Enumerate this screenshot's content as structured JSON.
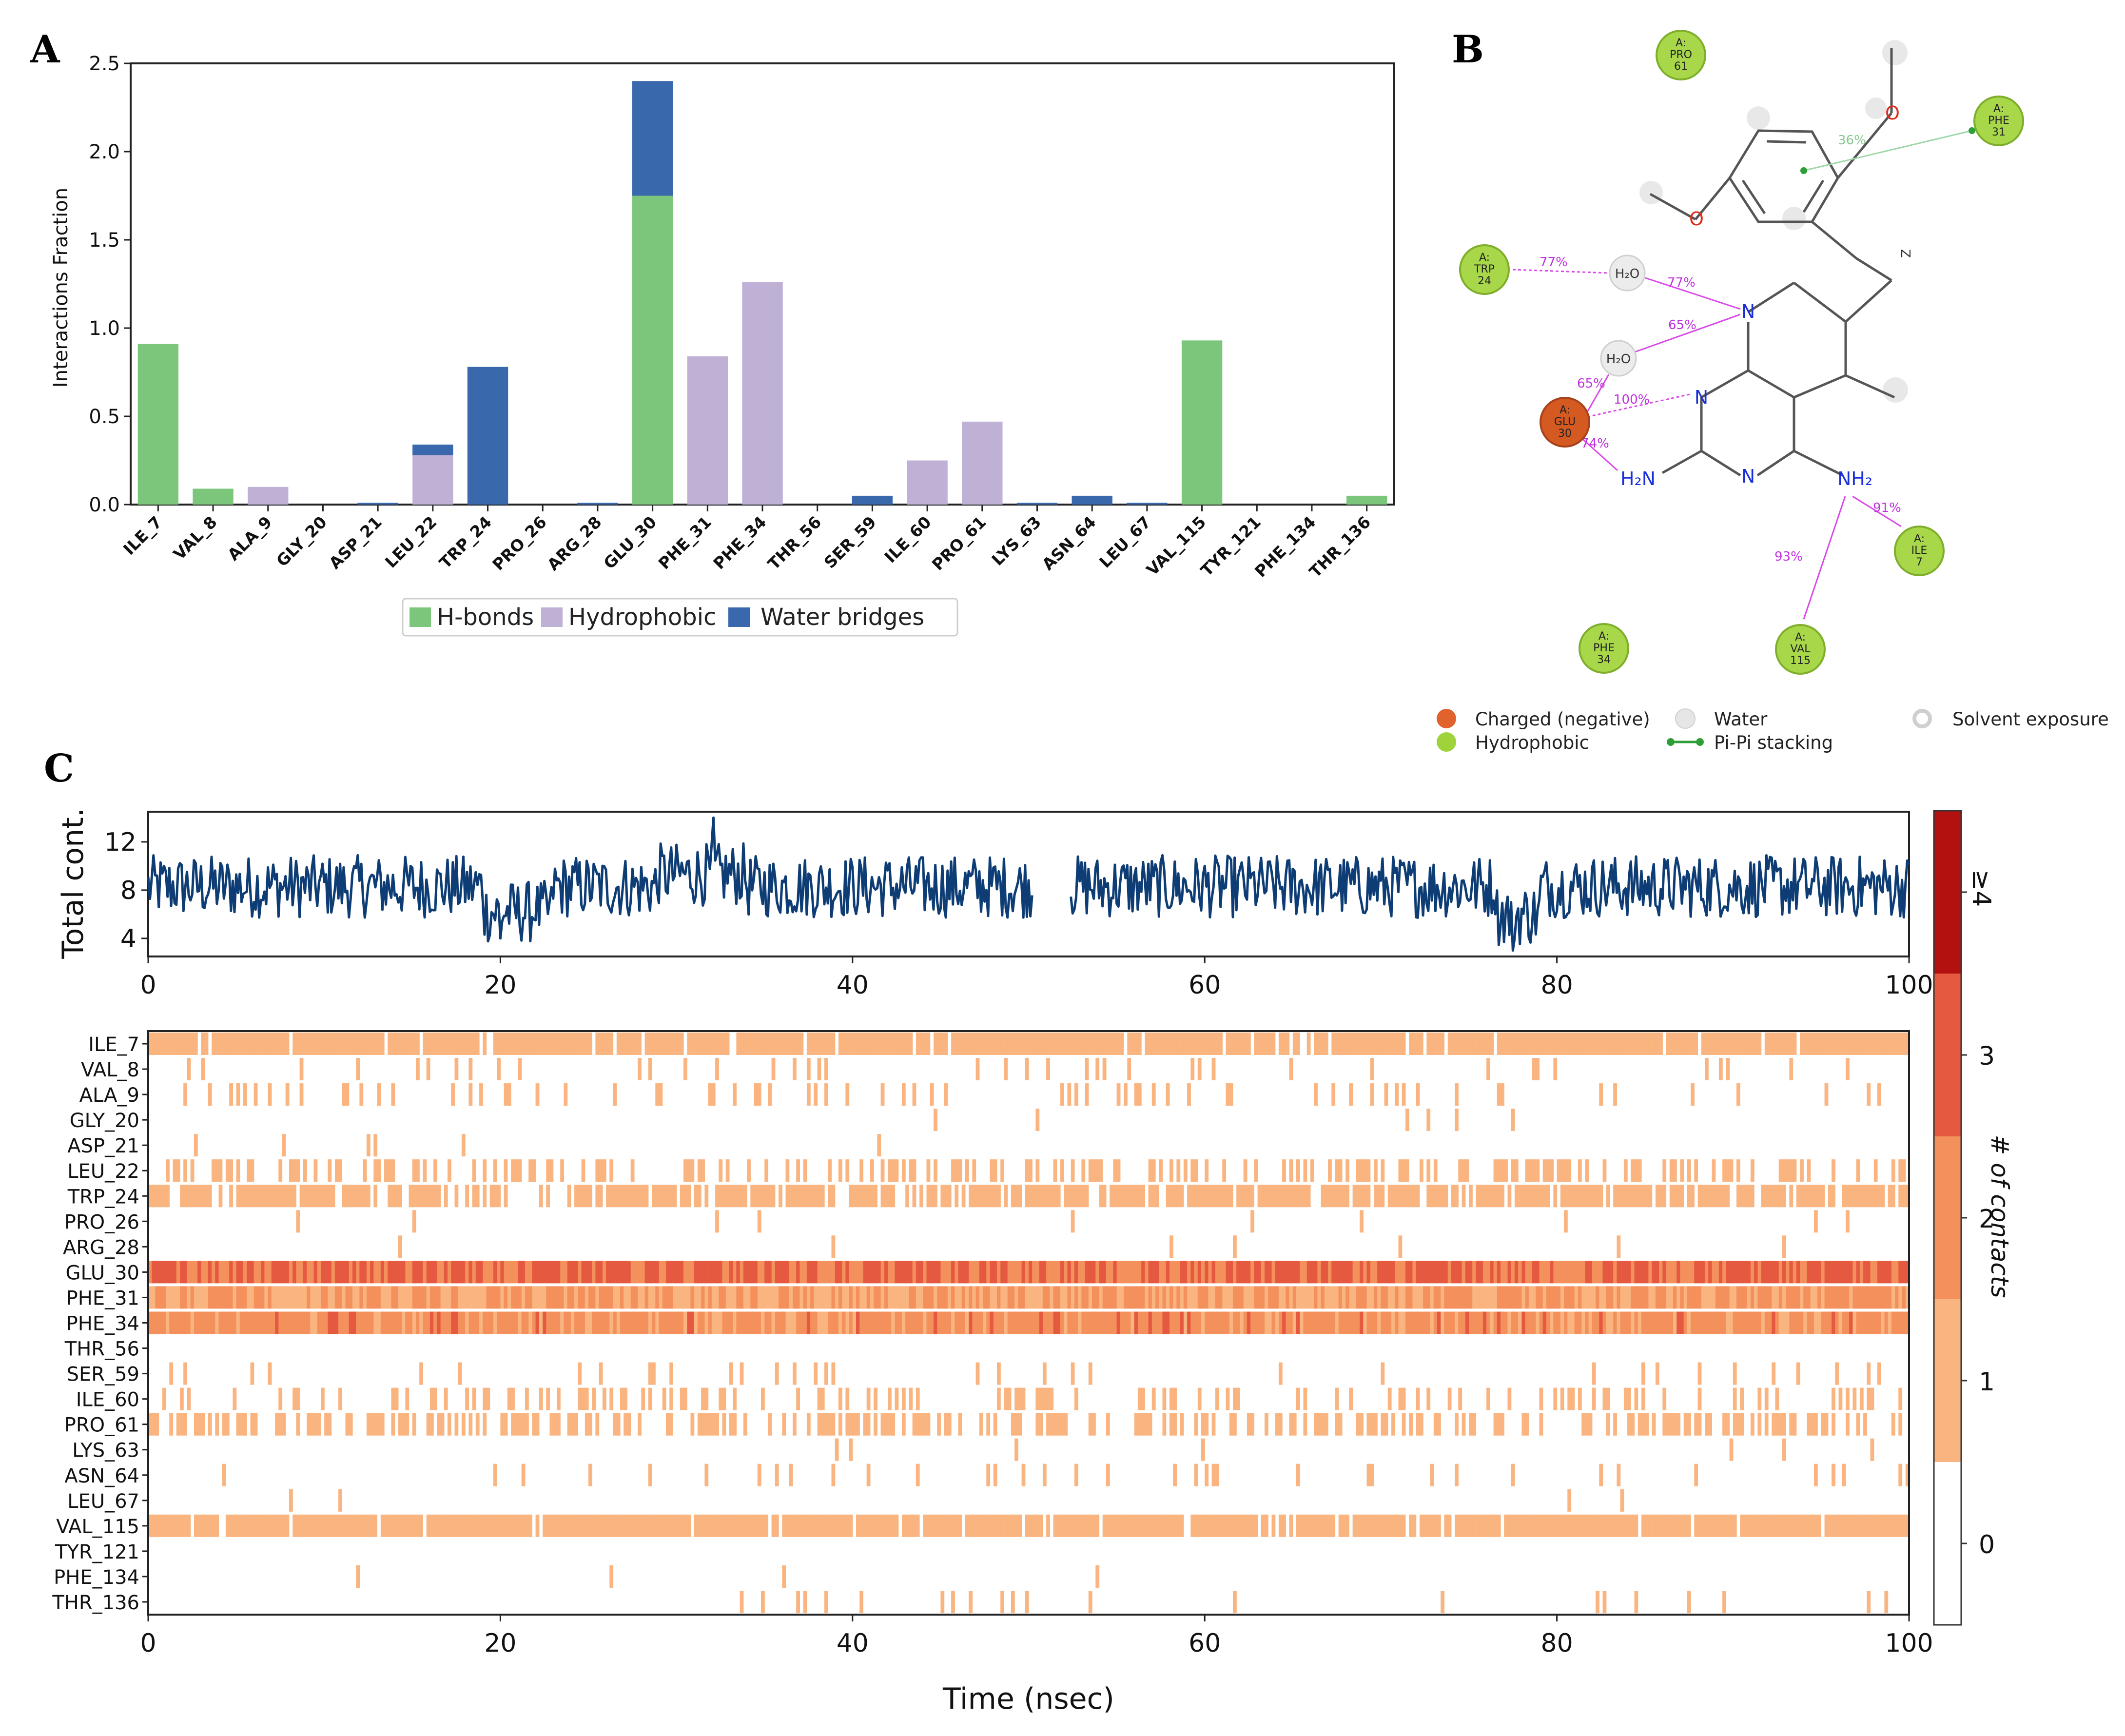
{
  "panels": {
    "a": "A",
    "b": "B",
    "c": "C"
  },
  "chart_data": [
    {
      "type": "bar",
      "stacked": true,
      "title": "",
      "xlabel": "",
      "ylabel": "Interactions Fraction",
      "ylim": [
        0,
        2.5
      ],
      "yticks": [
        "0.0",
        "0.5",
        "1.0",
        "1.5",
        "2.0",
        "2.5"
      ],
      "categories": [
        "ILE_7",
        "VAL_8",
        "ALA_9",
        "GLY_20",
        "ASP_21",
        "LEU_22",
        "TRP_24",
        "PRO_26",
        "ARG_28",
        "GLU_30",
        "PHE_31",
        "PHE_34",
        "THR_56",
        "SER_59",
        "ILE_60",
        "PRO_61",
        "LYS_63",
        "ASN_64",
        "LEU_67",
        "VAL_115",
        "TYR_121",
        "PHE_134",
        "THR_136"
      ],
      "series": [
        {
          "name": "H-bonds",
          "color": "#7cc67c",
          "values": [
            0.91,
            0.09,
            0,
            0,
            0,
            0,
            0,
            0,
            0,
            1.75,
            0,
            0,
            0,
            0,
            0,
            0,
            0,
            0,
            0,
            0.93,
            0,
            0,
            0.05
          ]
        },
        {
          "name": "Hydrophobic",
          "color": "#bfb0d6",
          "values": [
            0,
            0,
            0.1,
            0,
            0,
            0.28,
            0,
            0,
            0,
            0,
            0.84,
            1.26,
            0,
            0,
            0.25,
            0.47,
            0,
            0,
            0,
            0,
            0,
            0,
            0
          ]
        },
        {
          "name": "Water bridges",
          "color": "#3a68ad",
          "values": [
            0,
            0,
            0,
            0,
            0.01,
            0.06,
            0.78,
            0,
            0.01,
            0.65,
            0,
            0,
            0,
            0.05,
            0,
            0,
            0.01,
            0.05,
            0.01,
            0,
            0,
            0,
            0
          ]
        }
      ],
      "legend": [
        "H-bonds",
        "Hydrophobic",
        "Water bridges"
      ],
      "legend_position": "bottom-center"
    },
    {
      "type": "line",
      "ylabel": "Total cont.",
      "yticks": [
        "4",
        "8",
        "12"
      ],
      "ylim": [
        2.5,
        14.5
      ],
      "xlim": [
        0,
        100
      ],
      "xticks": [
        "0",
        "20",
        "40",
        "60",
        "80",
        "100"
      ],
      "color": "#0d3d74",
      "x_start": 0,
      "x_step": 0.1,
      "gap": [
        50.3,
        52.4
      ],
      "y_mean": 8.3,
      "events": [
        {
          "x": 20,
          "y": 4
        },
        {
          "x": 22,
          "y": 5.5
        },
        {
          "x": 32.1,
          "y": 14
        },
        {
          "x": 77.5,
          "y": 3
        }
      ]
    },
    {
      "type": "heatmap",
      "xlabel": "Time (nsec)",
      "xlim": [
        0,
        100
      ],
      "xticks": [
        "0",
        "20",
        "40",
        "60",
        "80",
        "100"
      ],
      "rows": [
        "ILE_7",
        "VAL_8",
        "ALA_9",
        "GLY_20",
        "ASP_21",
        "LEU_22",
        "TRP_24",
        "PRO_26",
        "ARG_28",
        "GLU_30",
        "PHE_31",
        "PHE_34",
        "THR_56",
        "SER_59",
        "ILE_60",
        "PRO_61",
        "LYS_63",
        "ASN_64",
        "LEU_67",
        "VAL_115",
        "TYR_121",
        "PHE_134",
        "THR_136"
      ],
      "row_contact_frequency": [
        0.92,
        0.08,
        0.12,
        0.01,
        0.03,
        0.35,
        0.78,
        0.02,
        0.01,
        1.0,
        1.0,
        1.0,
        0.0,
        0.05,
        0.25,
        0.45,
        0.01,
        0.06,
        0.01,
        0.94,
        0.0,
        0.01,
        0.05
      ],
      "row_mean_contacts": [
        1,
        1,
        1,
        1,
        1,
        1,
        1,
        1,
        1,
        2.6,
        1.6,
        1.9,
        1,
        1,
        1,
        1,
        1,
        1,
        1,
        1,
        1,
        1,
        1
      ]
    }
  ],
  "colorbar": {
    "title": "# of contacts",
    "labels": [
      "0",
      "1",
      "2",
      "3",
      "≥4"
    ],
    "colors": [
      "#ffffff",
      "#f9b47f",
      "#f4905c",
      "#e4593f",
      "#b3110f"
    ]
  },
  "interaction_diagram": {
    "residues": [
      {
        "chain": "A:",
        "name": "PRO",
        "num": "61",
        "type": "hydrophobic"
      },
      {
        "chain": "A:",
        "name": "PHE",
        "num": "31",
        "type": "hydrophobic"
      },
      {
        "chain": "A:",
        "name": "TRP",
        "num": "24",
        "type": "hydrophobic"
      },
      {
        "chain": "A:",
        "name": "GLU",
        "num": "30",
        "type": "charged"
      },
      {
        "chain": "A:",
        "name": "ILE",
        "num": "7",
        "type": "hydrophobic"
      },
      {
        "chain": "A:",
        "name": "PHE",
        "num": "34",
        "type": "hydrophobic"
      },
      {
        "chain": "A:",
        "name": "VAL",
        "num": "115",
        "type": "hydrophobic"
      }
    ],
    "waters": [
      "H₂O",
      "H₂O"
    ],
    "atoms": [
      "O",
      "O",
      "N",
      "N",
      "N",
      "H₂N",
      "NH₂",
      "Z"
    ],
    "percentages": [
      "36%",
      "77%",
      "77%",
      "65%",
      "65%",
      "100%",
      "74%",
      "91%",
      "93%"
    ],
    "legend": [
      {
        "label": "Charged (negative)",
        "color": "#e2622d"
      },
      {
        "label": "Water",
        "color": "#e4e4e4"
      },
      {
        "label": "Solvent exposure",
        "color": "#cfcfcf"
      },
      {
        "label": "Hydrophobic",
        "color": "#9fd33c"
      },
      {
        "label": "Pi-Pi stacking",
        "color": "#2e9e38"
      }
    ]
  }
}
